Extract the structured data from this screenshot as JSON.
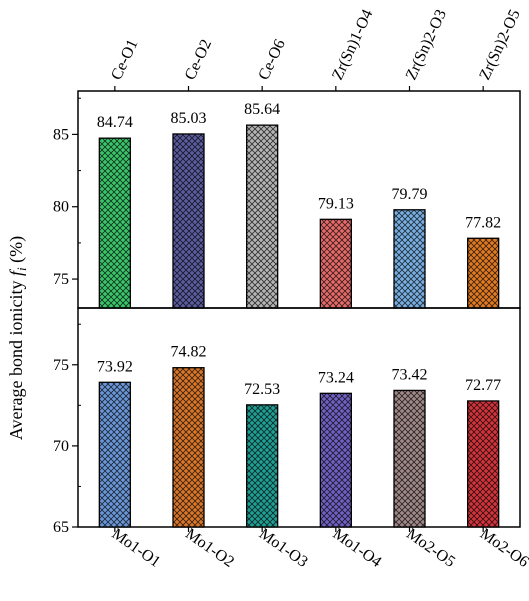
{
  "chart_data": [
    {
      "type": "bar",
      "panel": "top",
      "categories": [
        "Ce-O1",
        "Ce-O2",
        "Ce-O6",
        "Zr(Sn)1-O4",
        "Zr(Sn)2-O3",
        "Zr(Sn)2-O5"
      ],
      "values": [
        84.74,
        85.03,
        85.64,
        79.13,
        79.79,
        77.82
      ],
      "value_labels": [
        "84.74",
        "85.03",
        "85.64",
        "79.13",
        "79.79",
        "77.82"
      ],
      "colors": [
        "#3cc46b",
        "#5b5b9e",
        "#b4b4b4",
        "#e46a6a",
        "#78aee0",
        "#e07a22"
      ],
      "ylim": [
        73,
        88
      ],
      "yticks": [
        75,
        80,
        85
      ],
      "category_axis": "top"
    },
    {
      "type": "bar",
      "panel": "bottom",
      "categories": [
        "Mo1-O1",
        "Mo1-O2",
        "Mo1-O3",
        "Mo1-O4",
        "Mo2-O5",
        "Mo2-O6"
      ],
      "values": [
        73.92,
        74.82,
        72.53,
        73.24,
        73.42,
        72.77
      ],
      "value_labels": [
        "73.92",
        "74.82",
        "72.53",
        "73.24",
        "73.42",
        "72.77"
      ],
      "colors": [
        "#6a96d6",
        "#d8762a",
        "#1f9e94",
        "#7060c0",
        "#a08888",
        "#d0343c"
      ],
      "ylim": [
        65,
        78.5
      ],
      "yticks": [
        65,
        70,
        75
      ],
      "category_axis": "bottom"
    }
  ],
  "ylabel_prefix": "Average bond ionicity ",
  "ylabel_symbol": "f",
  "ylabel_sub": "i",
  "ylabel_suffix": " (%)"
}
